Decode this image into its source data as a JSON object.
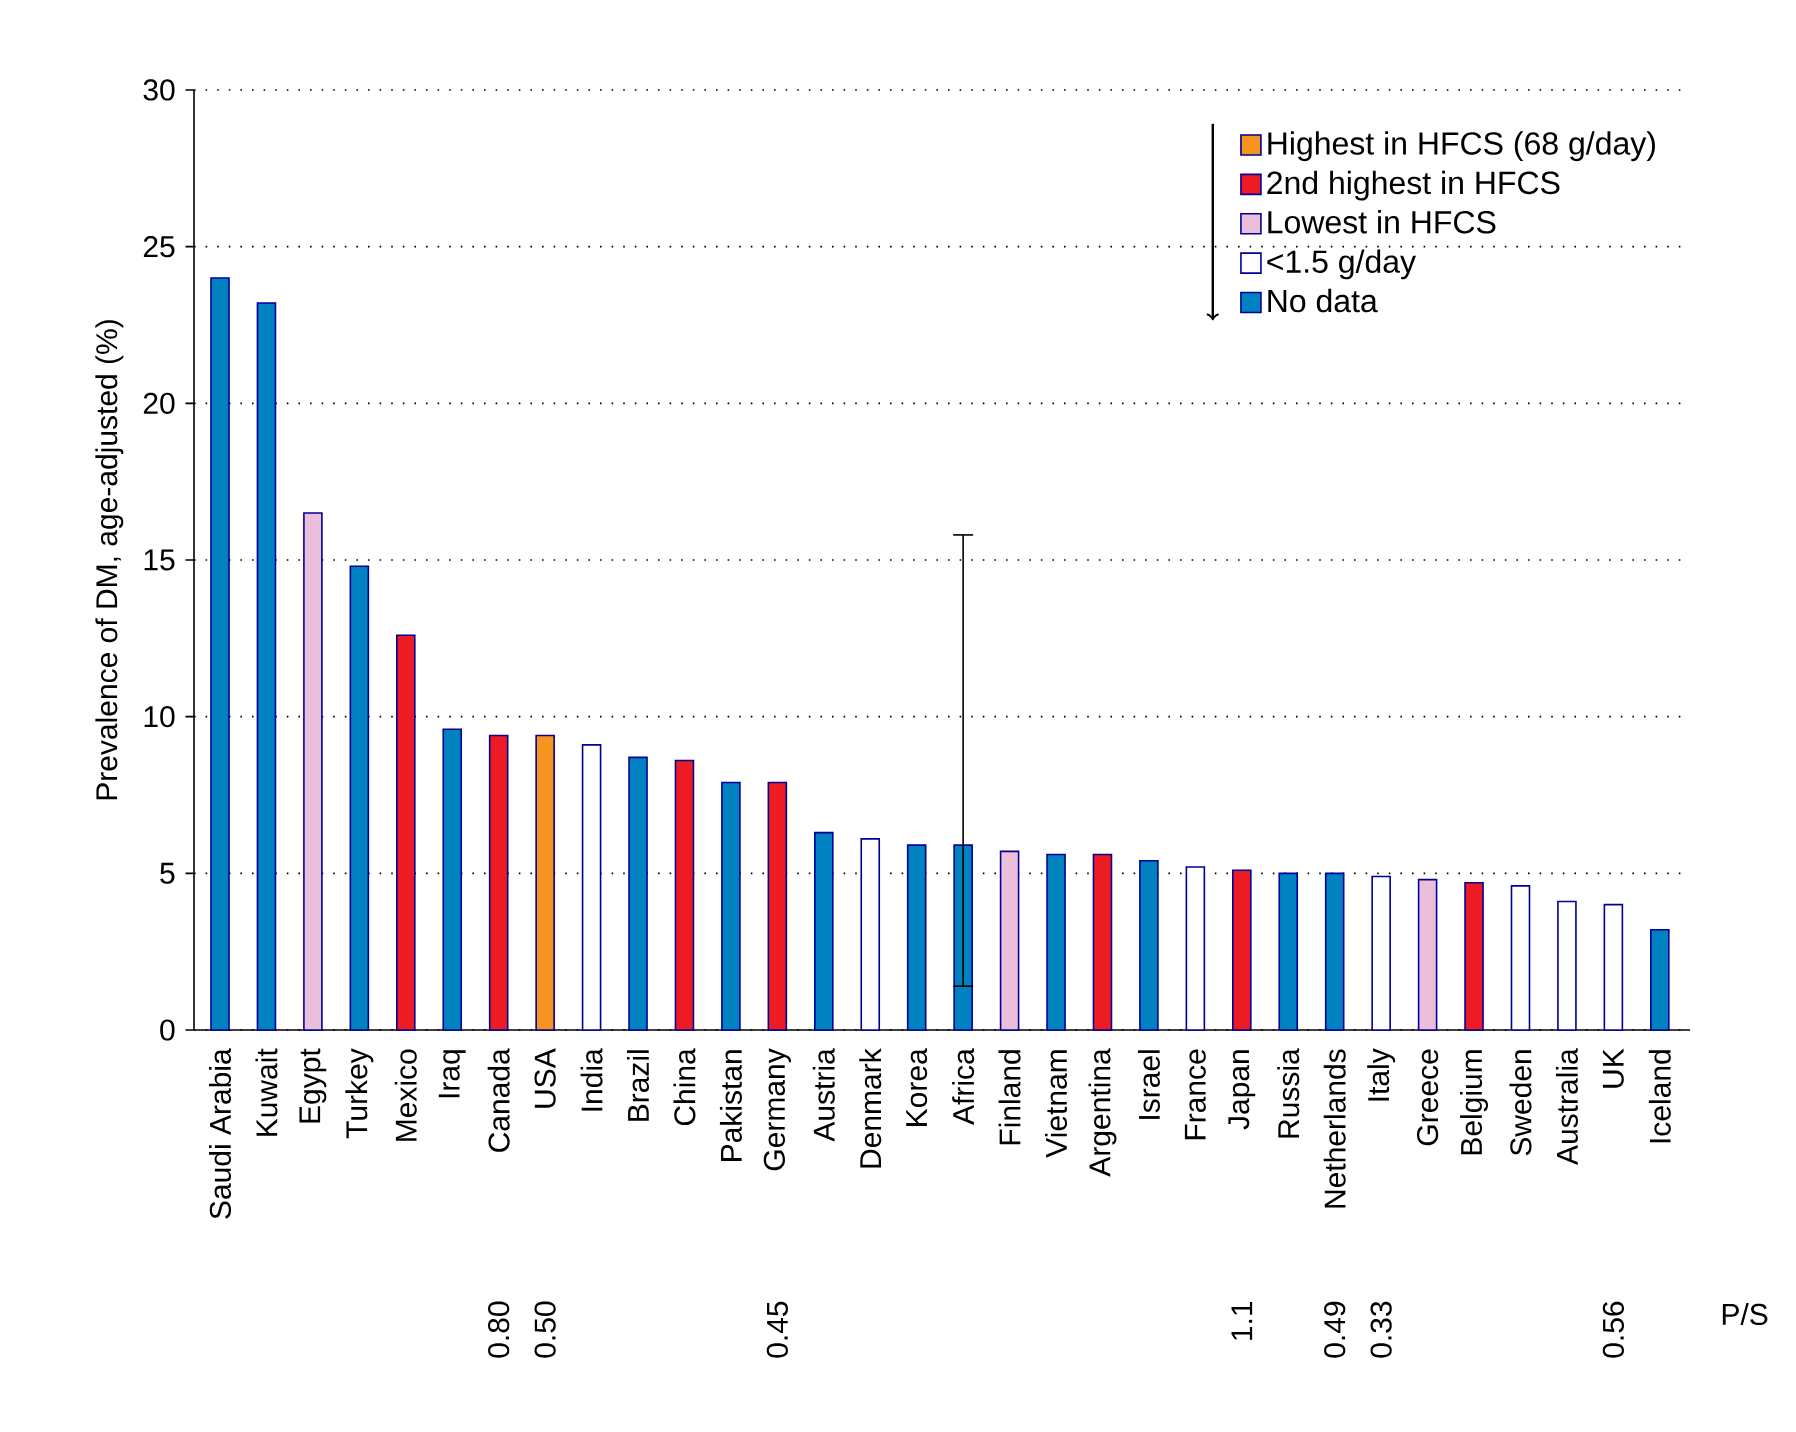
{
  "chart_data": {
    "type": "bar",
    "ylabel": "Prevalence of DM, age-adjusted (%)",
    "categories": [
      "Saudi Arabia",
      "Kuwait",
      "Egypt",
      "Turkey",
      "Mexico",
      "Iraq",
      "Canada",
      "USA",
      "India",
      "Brazil",
      "China",
      "Pakistan",
      "Germany",
      "Austria",
      "Denmark",
      "Korea",
      "Africa",
      "Finland",
      "Vietnam",
      "Argentina",
      "Israel",
      "France",
      "Japan",
      "Russia",
      "Netherlands",
      "Italy",
      "Greece",
      "Belgium",
      "Sweden",
      "Australia",
      "UK",
      "Iceland"
    ],
    "series": [
      {
        "name": "Highest in HFCS (68 g/day)",
        "color": "#f7941d",
        "values": [
          null,
          null,
          null,
          null,
          null,
          null,
          null,
          9.4,
          null,
          null,
          null,
          null,
          null,
          null,
          null,
          null,
          null,
          null,
          null,
          null,
          null,
          null,
          null,
          null,
          null,
          null,
          null,
          null,
          null,
          null,
          null,
          null
        ]
      },
      {
        "name": "2nd highest in HFCS",
        "color": "#ed1c24",
        "values": [
          null,
          null,
          null,
          null,
          12.6,
          null,
          9.4,
          null,
          null,
          null,
          8.6,
          null,
          7.9,
          null,
          null,
          null,
          null,
          null,
          null,
          5.6,
          null,
          null,
          5.1,
          null,
          null,
          null,
          null,
          4.7,
          null,
          null,
          null,
          null
        ]
      },
      {
        "name": "Lowest in HFCS",
        "color": "#ebbfd9",
        "values": [
          null,
          null,
          16.5,
          null,
          null,
          null,
          null,
          null,
          null,
          null,
          null,
          null,
          null,
          null,
          null,
          null,
          null,
          5.7,
          null,
          null,
          null,
          null,
          null,
          null,
          null,
          null,
          4.8,
          null,
          null,
          null,
          null,
          null
        ]
      },
      {
        "name": "<1.5 g/day",
        "color": "#ffffff",
        "values": [
          null,
          null,
          null,
          null,
          null,
          null,
          null,
          null,
          9.1,
          null,
          null,
          null,
          null,
          null,
          6.1,
          null,
          null,
          null,
          null,
          null,
          null,
          5.2,
          null,
          null,
          null,
          4.9,
          null,
          null,
          4.6,
          4.1,
          4.0,
          null
        ]
      },
      {
        "name": "No data",
        "color": "#0081c0",
        "values": [
          24.0,
          23.2,
          null,
          14.8,
          null,
          9.6,
          null,
          null,
          null,
          8.7,
          null,
          7.9,
          null,
          6.3,
          null,
          5.9,
          5.9,
          null,
          5.6,
          null,
          5.4,
          null,
          null,
          5.0,
          5.0,
          null,
          null,
          null,
          null,
          null,
          null,
          3.2
        ],
        "errors": [
          null,
          null,
          null,
          null,
          null,
          null,
          null,
          null,
          null,
          null,
          null,
          null,
          null,
          null,
          null,
          null,
          [
            1.4,
            15.8
          ],
          null,
          null,
          null,
          null,
          null,
          null,
          null,
          null,
          null,
          null,
          null,
          null,
          null,
          null,
          null
        ]
      }
    ],
    "ylim": [
      0,
      30
    ],
    "yticks": [
      0,
      5,
      10,
      15,
      20,
      25,
      30
    ],
    "grid": "y",
    "legend": "top right",
    "annotations": [
      "P/S",
      "0.80",
      "0.50",
      "0.45",
      "1.1",
      "0.49",
      "0.33",
      "0.56"
    ]
  }
}
